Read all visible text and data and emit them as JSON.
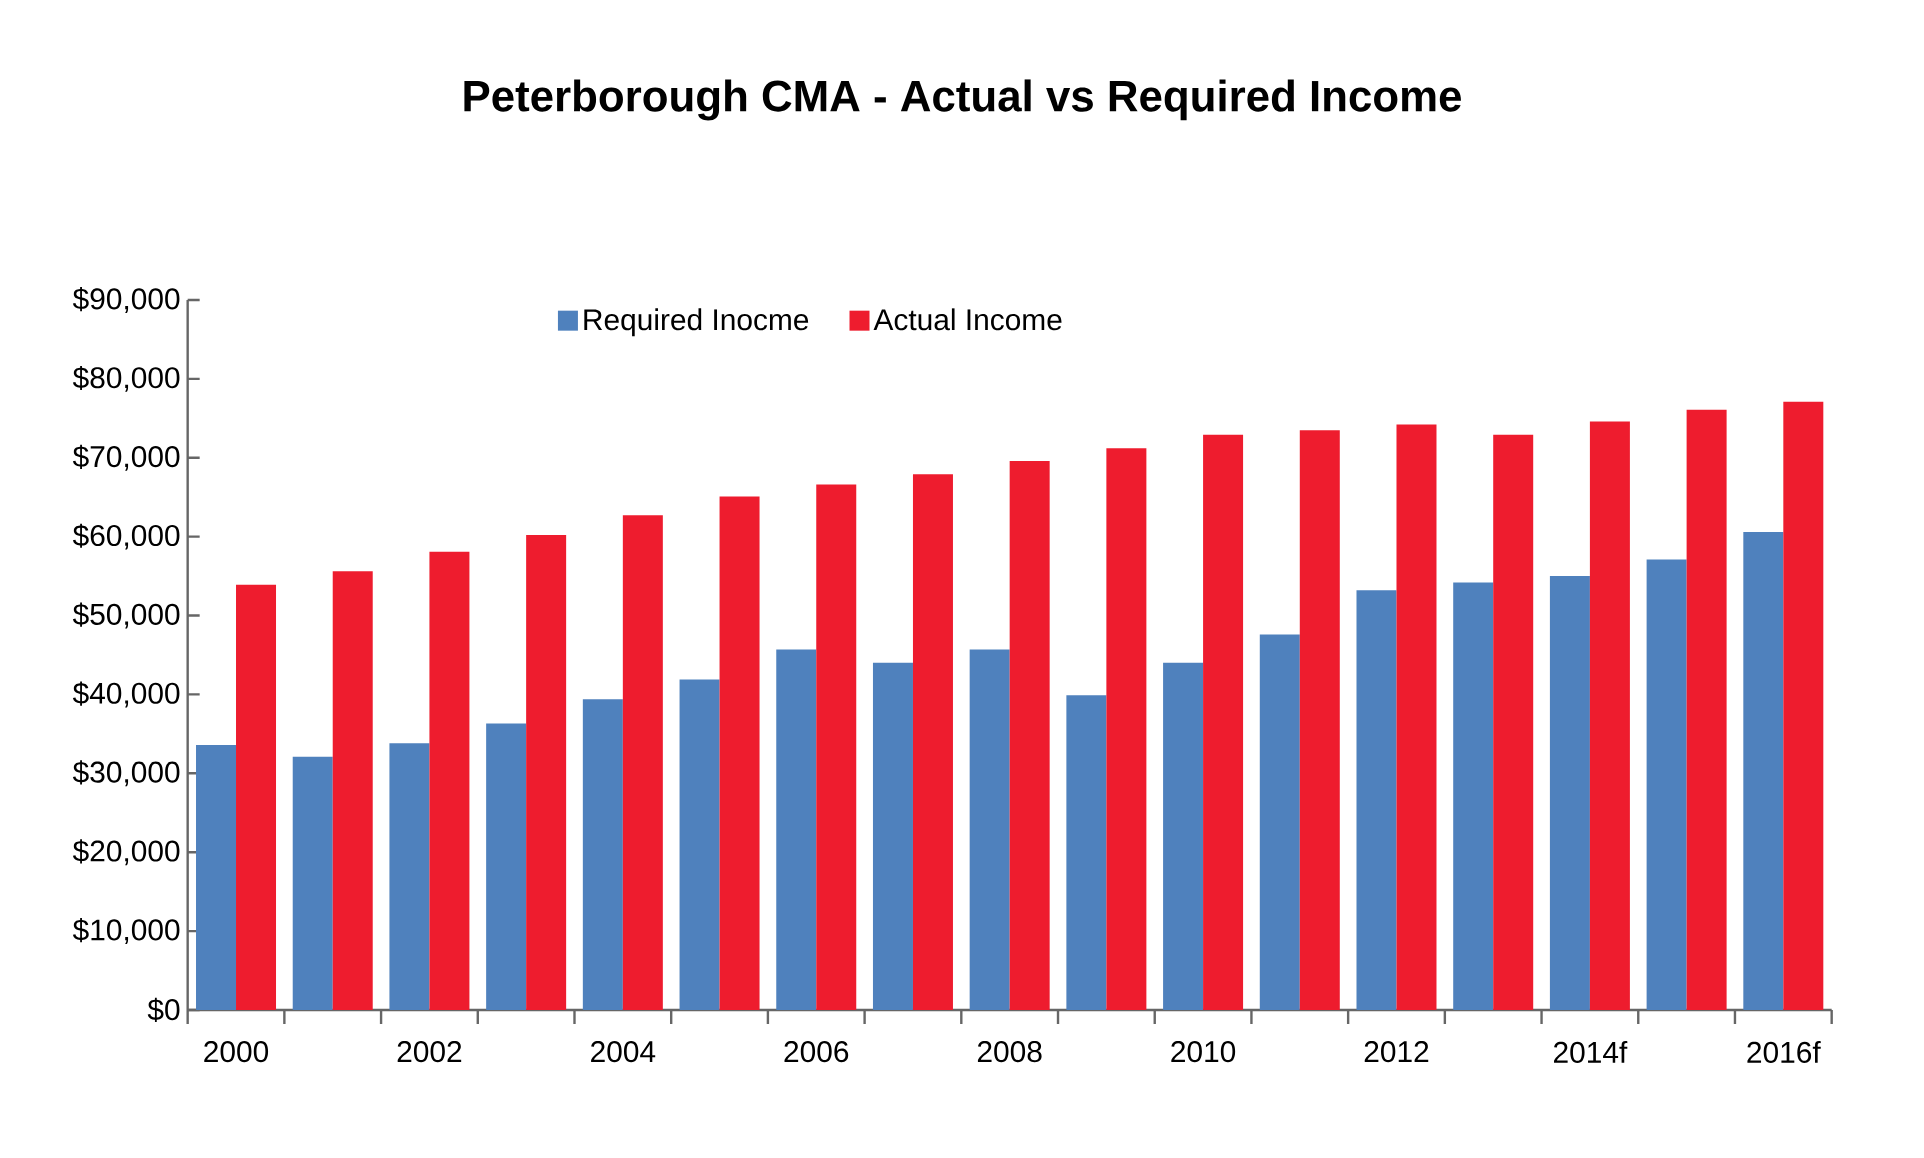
{
  "chart_data": {
    "type": "bar",
    "title": "Peterborough CMA - Actual vs Required Income",
    "categories": [
      "2000",
      null,
      "2002",
      null,
      "2004",
      null,
      "2006",
      null,
      "2008",
      null,
      "2010",
      null,
      "2012",
      null,
      "2014f",
      null,
      "2016f"
    ],
    "series": [
      {
        "name": "Required Inocme",
        "color": "#4f81bd",
        "values": [
          33600,
          32100,
          33800,
          36300,
          39400,
          41900,
          45700,
          44000,
          45700,
          39900,
          44000,
          47600,
          53200,
          54200,
          55000,
          57100,
          60600
        ]
      },
      {
        "name": "Actual Income",
        "color": "#ee1c2e",
        "values": [
          53900,
          55600,
          58100,
          60200,
          62700,
          65100,
          66600,
          67900,
          69600,
          71200,
          72900,
          73500,
          74200,
          72900,
          74600,
          76100,
          77100
        ]
      }
    ],
    "ylim": [
      0,
      90000
    ],
    "yticks": [
      {
        "value": 0,
        "label": "$0"
      },
      {
        "value": 10000,
        "label": "$10,000"
      },
      {
        "value": 20000,
        "label": "$20,000"
      },
      {
        "value": 30000,
        "label": "$30,000"
      },
      {
        "value": 40000,
        "label": "$40,000"
      },
      {
        "value": 50000,
        "label": "$50,000"
      },
      {
        "value": 60000,
        "label": "$60,000"
      },
      {
        "value": 70000,
        "label": "$70,000"
      },
      {
        "value": 80000,
        "label": "$80,000"
      },
      {
        "value": 90000,
        "label": "$90,000"
      }
    ],
    "grid": false,
    "legend": "top"
  }
}
